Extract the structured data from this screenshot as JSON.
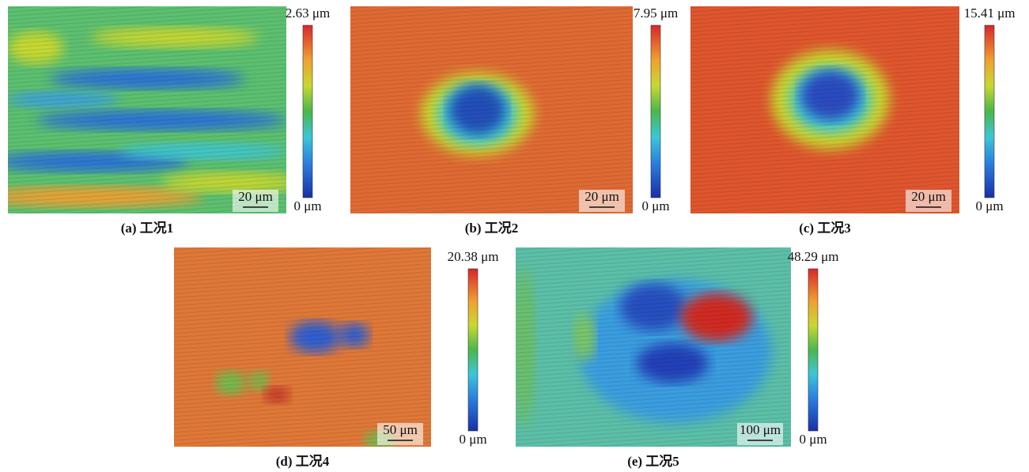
{
  "panels": [
    {
      "caption": "(a) 工况1",
      "scale_bar": "20 μm",
      "colorbar_max": "2.63 μm",
      "colorbar_min": "0 μm"
    },
    {
      "caption": "(b) 工况2",
      "scale_bar": "20 μm",
      "colorbar_max": "7.95 μm",
      "colorbar_min": "0 μm"
    },
    {
      "caption": "(c) 工况3",
      "scale_bar": "20 μm",
      "colorbar_max": "15.41 μm",
      "colorbar_min": "0 μm"
    },
    {
      "caption": "(d) 工况4",
      "scale_bar": "50 μm",
      "colorbar_max": "20.38 μm",
      "colorbar_min": "0 μm"
    },
    {
      "caption": "(e) 工况5",
      "scale_bar": "100 μm",
      "colorbar_max": "48.29 μm",
      "colorbar_min": "0 μm"
    }
  ]
}
